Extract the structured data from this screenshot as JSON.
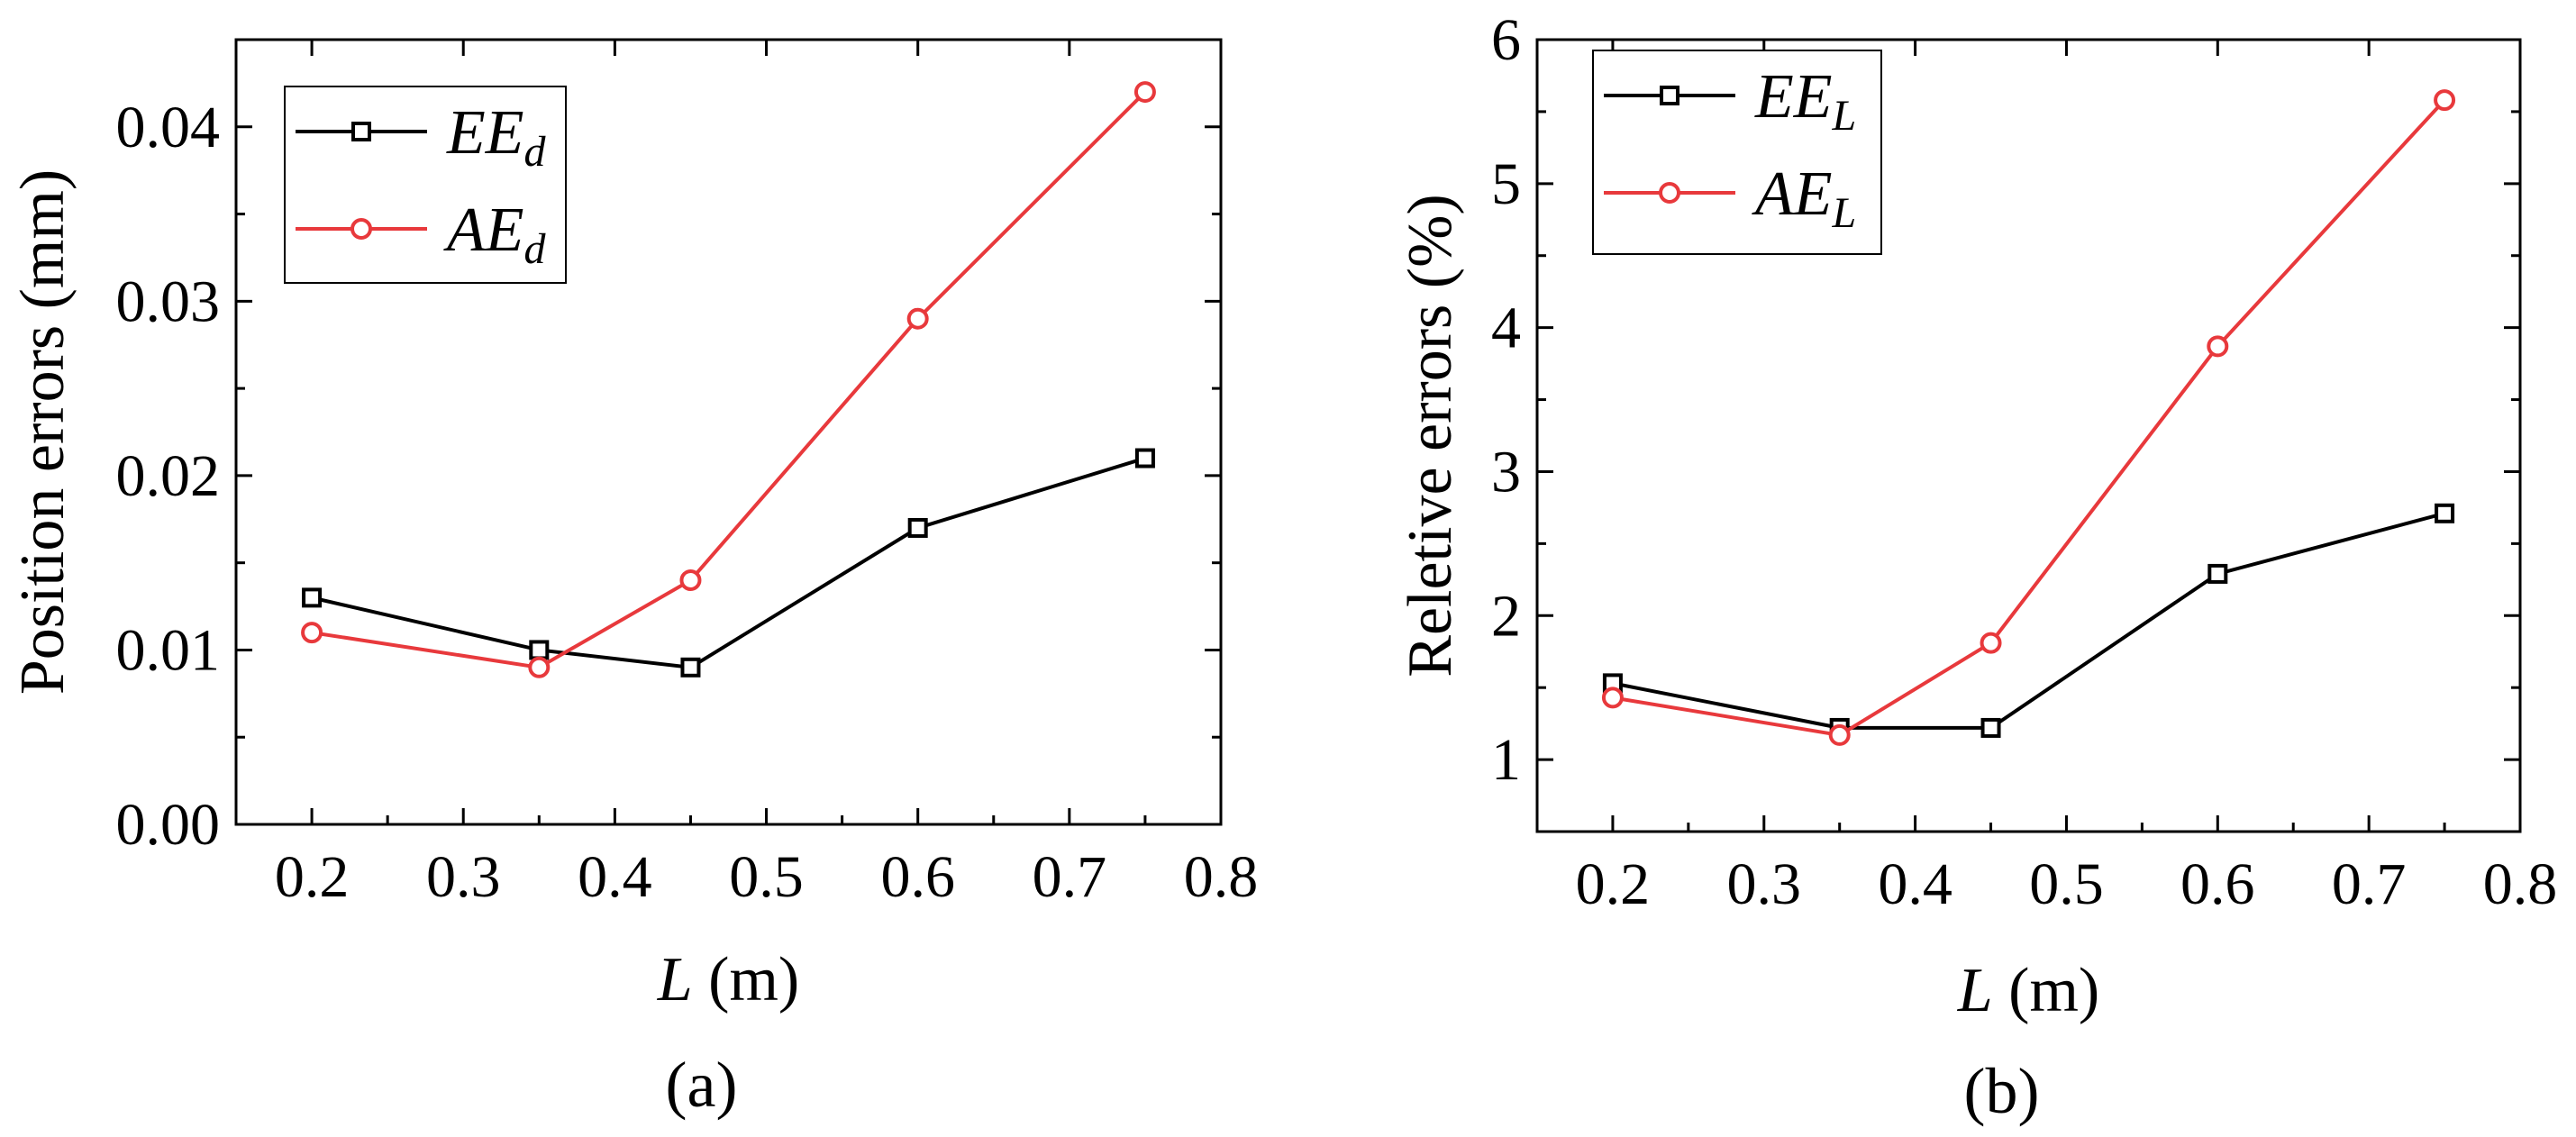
{
  "chart_data": [
    {
      "type": "line",
      "caption": "(a)",
      "xlabel_var": "L",
      "xlabel_unit": " (m)",
      "ylabel": "Position errors (mm)",
      "xlim": [
        0.15,
        0.8
      ],
      "ylim": [
        0.0,
        0.045
      ],
      "xticks": [
        0.2,
        0.3,
        0.4,
        0.5,
        0.6,
        0.7,
        0.8
      ],
      "xtick_labels": [
        "0.2",
        "0.3",
        "0.4",
        "0.5",
        "0.6",
        "0.7",
        "0.8"
      ],
      "yticks": [
        0.0,
        0.01,
        0.02,
        0.03,
        0.04
      ],
      "ytick_labels": [
        "0.00",
        "0.01",
        "0.02",
        "0.03",
        "0.04"
      ],
      "legend_position": "top-left",
      "series": [
        {
          "name": "EEd",
          "label_main": "EE",
          "label_sub": "d",
          "color": "#000000",
          "marker": "square",
          "x": [
            0.2,
            0.35,
            0.45,
            0.6,
            0.75
          ],
          "y": [
            0.013,
            0.01,
            0.009,
            0.017,
            0.021
          ]
        },
        {
          "name": "AEd",
          "label_main": "AE",
          "label_sub": "d",
          "color": "#e8393c",
          "marker": "circle",
          "x": [
            0.2,
            0.35,
            0.45,
            0.6,
            0.75
          ],
          "y": [
            0.011,
            0.009,
            0.014,
            0.029,
            0.042
          ]
        }
      ]
    },
    {
      "type": "line",
      "caption": "(b)",
      "xlabel_var": "L",
      "xlabel_unit": " (m)",
      "ylabel": "Reletive errors (%)",
      "xlim": [
        0.15,
        0.8
      ],
      "ylim": [
        0.5,
        6.0
      ],
      "xticks": [
        0.2,
        0.3,
        0.4,
        0.5,
        0.6,
        0.7,
        0.8
      ],
      "xtick_labels": [
        "0.2",
        "0.3",
        "0.4",
        "0.5",
        "0.6",
        "0.7",
        "0.8"
      ],
      "yticks": [
        1,
        2,
        3,
        4,
        5,
        6
      ],
      "ytick_labels": [
        "1",
        "2",
        "3",
        "4",
        "5",
        "6"
      ],
      "legend_position": "top-left",
      "series": [
        {
          "name": "EEL",
          "label_main": "EE",
          "label_sub": "L",
          "color": "#000000",
          "marker": "square",
          "x": [
            0.2,
            0.35,
            0.45,
            0.6,
            0.75
          ],
          "y": [
            1.53,
            1.22,
            1.22,
            2.29,
            2.71
          ]
        },
        {
          "name": "AEL",
          "label_main": "AE",
          "label_sub": "L",
          "color": "#e8393c",
          "marker": "circle",
          "x": [
            0.2,
            0.35,
            0.45,
            0.6,
            0.75
          ],
          "y": [
            1.43,
            1.17,
            1.81,
            3.87,
            5.58
          ]
        }
      ]
    }
  ]
}
